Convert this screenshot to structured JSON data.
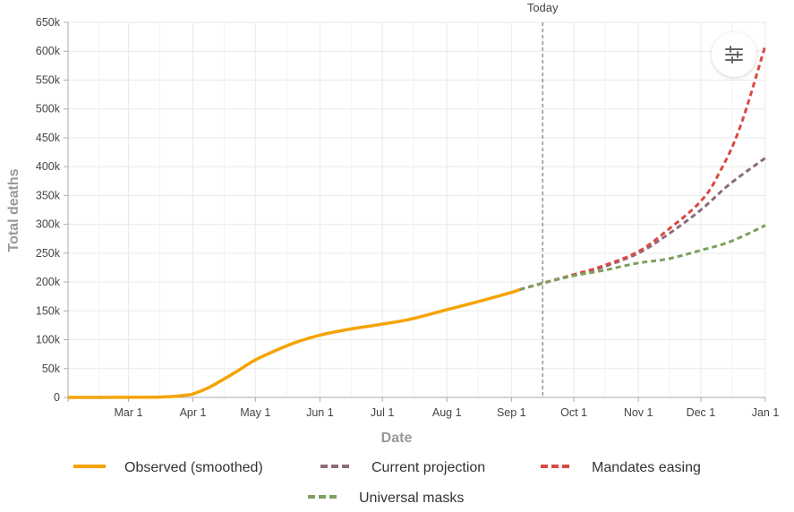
{
  "chart_data": {
    "type": "line",
    "xlabel": "Date",
    "ylabel": "Total deaths",
    "x_range": [
      "2020-02-01",
      "2021-01-01"
    ],
    "ylim": [
      0,
      650000
    ],
    "y_ticks": [
      0,
      50000,
      100000,
      150000,
      200000,
      250000,
      300000,
      350000,
      400000,
      450000,
      500000,
      550000,
      600000,
      650000
    ],
    "y_tick_labels": [
      "0",
      "50k",
      "100k",
      "150k",
      "200k",
      "250k",
      "300k",
      "350k",
      "400k",
      "450k",
      "500k",
      "550k",
      "600k",
      "650k"
    ],
    "x_ticks": [
      "2020-03-01",
      "2020-04-01",
      "2020-05-01",
      "2020-06-01",
      "2020-07-01",
      "2020-08-01",
      "2020-09-01",
      "2020-10-01",
      "2020-11-01",
      "2020-12-01",
      "2021-01-01"
    ],
    "x_tick_labels": [
      "Mar 1",
      "Apr 1",
      "May 1",
      "Jun 1",
      "Jul 1",
      "Aug 1",
      "Sep 1",
      "Oct 1",
      "Nov 1",
      "Dec 1",
      "Jan 1"
    ],
    "grid": true,
    "legend_position": "bottom",
    "today": {
      "label": "Today",
      "date": "2020-09-16"
    },
    "series": [
      {
        "name": "Observed (smoothed)",
        "color": "#f5a300",
        "style": "solid",
        "points": [
          [
            "2020-02-01",
            0
          ],
          [
            "2020-03-01",
            200
          ],
          [
            "2020-03-15",
            500
          ],
          [
            "2020-03-22",
            1500
          ],
          [
            "2020-03-29",
            4000
          ],
          [
            "2020-04-01",
            6000
          ],
          [
            "2020-04-08",
            16000
          ],
          [
            "2020-04-15",
            30000
          ],
          [
            "2020-04-22",
            45000
          ],
          [
            "2020-05-01",
            65000
          ],
          [
            "2020-05-10",
            80000
          ],
          [
            "2020-05-20",
            95000
          ],
          [
            "2020-06-01",
            108000
          ],
          [
            "2020-06-15",
            118000
          ],
          [
            "2020-07-01",
            127000
          ],
          [
            "2020-07-15",
            136000
          ],
          [
            "2020-08-01",
            152000
          ],
          [
            "2020-08-15",
            165000
          ],
          [
            "2020-09-01",
            182000
          ],
          [
            "2020-09-05",
            187000
          ]
        ]
      },
      {
        "name": "Current projection",
        "color": "#8e6b7b",
        "style": "dashed",
        "points": [
          [
            "2020-09-05",
            187000
          ],
          [
            "2020-09-16",
            198000
          ],
          [
            "2020-10-01",
            212000
          ],
          [
            "2020-10-15",
            226000
          ],
          [
            "2020-11-01",
            250000
          ],
          [
            "2020-11-15",
            282000
          ],
          [
            "2020-12-01",
            325000
          ],
          [
            "2020-12-15",
            370000
          ],
          [
            "2021-01-01",
            415000
          ]
        ]
      },
      {
        "name": "Mandates easing",
        "color": "#d94a42",
        "style": "dashed",
        "points": [
          [
            "2020-09-05",
            187000
          ],
          [
            "2020-09-16",
            198000
          ],
          [
            "2020-10-01",
            213000
          ],
          [
            "2020-10-15",
            228000
          ],
          [
            "2020-11-01",
            253000
          ],
          [
            "2020-11-15",
            290000
          ],
          [
            "2020-12-01",
            340000
          ],
          [
            "2020-12-10",
            390000
          ],
          [
            "2020-12-20",
            470000
          ],
          [
            "2021-01-01",
            610000
          ]
        ]
      },
      {
        "name": "Universal masks",
        "color": "#7da05e",
        "style": "dashed",
        "points": [
          [
            "2020-09-05",
            187000
          ],
          [
            "2020-09-16",
            198000
          ],
          [
            "2020-10-01",
            211000
          ],
          [
            "2020-10-15",
            220000
          ],
          [
            "2020-11-01",
            233000
          ],
          [
            "2020-11-15",
            240000
          ],
          [
            "2020-12-01",
            255000
          ],
          [
            "2020-12-15",
            270000
          ],
          [
            "2021-01-01",
            298000
          ]
        ]
      }
    ]
  },
  "controls": {
    "settings_icon": "sliders-icon"
  }
}
